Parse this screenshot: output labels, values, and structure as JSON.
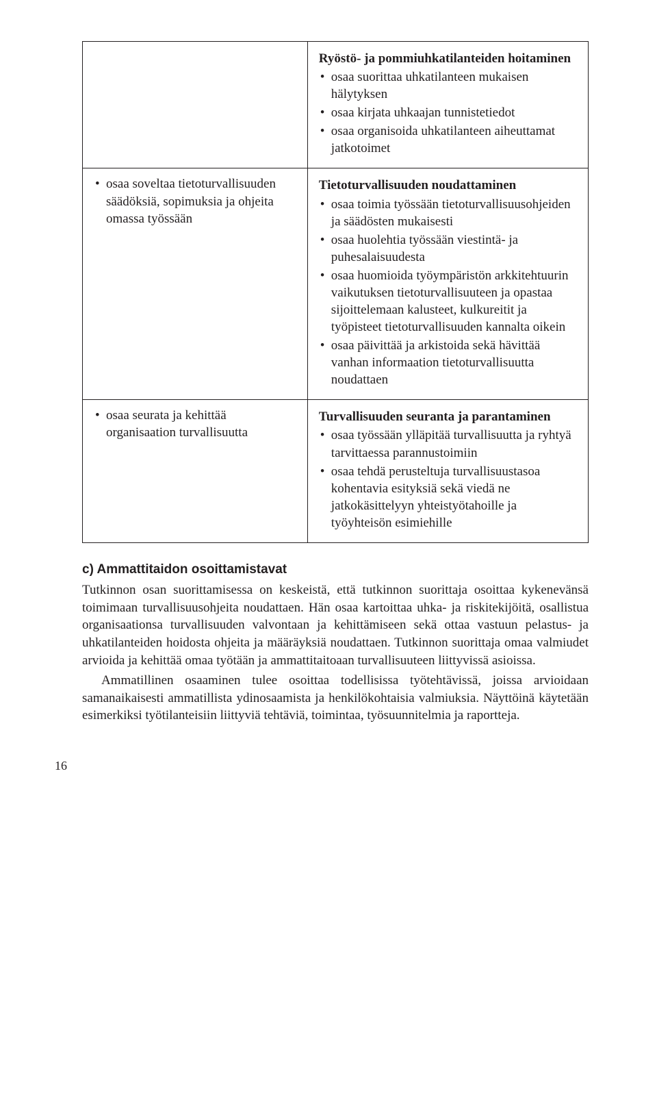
{
  "rows": [
    {
      "left_bullets": [],
      "right_title": "Ryöstö- ja pommiuhkatilanteiden hoitaminen",
      "right_bullets": [
        "osaa suorittaa uhkatilanteen mukaisen hälytyksen",
        "osaa kirjata uhkaajan tunnistetiedot",
        "osaa organisoida uhkatilanteen aiheuttamat jatkotoimet"
      ]
    },
    {
      "left_bullets": [
        "osaa soveltaa tietoturvallisuuden säädöksiä, sopimuksia ja ohjeita omassa työssään"
      ],
      "right_title": "Tietoturvallisuuden noudattaminen",
      "right_bullets": [
        "osaa toimia työssään tietoturvallisuusohjeiden ja säädösten mukaisesti",
        "osaa huolehtia työssään viestintä- ja puhesalaisuudesta",
        "osaa huomioida työympäristön arkkitehtuurin vaikutuksen tietoturvallisuuteen ja opastaa sijoittelemaan kalusteet, kulkureitit ja työpisteet tietoturvallisuuden kannalta oikein",
        "osaa päivittää ja arkistoida sekä hävittää vanhan informaation tietoturvallisuutta noudattaen"
      ]
    },
    {
      "left_bullets": [
        "osaa seurata ja kehittää organisaation turvallisuutta"
      ],
      "right_title": "Turvallisuuden seuranta ja parantaminen",
      "right_bullets": [
        "osaa työssään ylläpitää turvallisuutta ja ryhtyä tarvittaessa parannustoimiin",
        "osaa tehdä perusteltuja turvallisuustasoa kohentavia esityksiä sekä viedä ne jatkokäsittelyyn yhteistyötahoille ja työyhteisön esimiehille"
      ]
    }
  ],
  "section_heading": "c) Ammattitaidon osoittamistavat",
  "paragraphs": [
    "Tutkinnon osan suorittamisessa on keskeistä, että tutkinnon suorittaja osoittaa kykenevänsä toimimaan turvallisuusohjeita noudattaen. Hän osaa kartoittaa uhka- ja riskitekijöitä, osallistua organisaationsa turvallisuuden valvontaan ja kehittämiseen sekä ottaa vastuun pelastus- ja uhkatilanteiden hoidosta ohjeita ja määräyksiä noudattaen. Tutkinnon suorittaja omaa valmiudet arvioida ja kehittää omaa työtään ja ammattitaitoaan turvallisuuteen liittyvissä asioissa.",
    "Ammatillinen osaaminen tulee osoittaa todellisissa työtehtävissä, joissa arvioidaan samanaikaisesti ammatillista ydinosaamista ja henkilökohtaisia valmiuksia. Näyttöinä käytetään esimerkiksi työtilanteisiin liittyviä tehtäviä, toimintaa, työsuunnitelmia ja raportteja."
  ],
  "page_number": "16"
}
